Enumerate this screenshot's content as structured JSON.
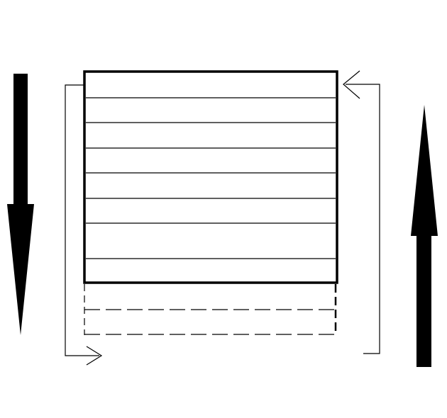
{
  "diagram": {
    "solid_row_count": 8,
    "dashed_row_count": 2,
    "arrows": [
      {
        "name": "down-arrow-icon",
        "direction": "down"
      },
      {
        "name": "up-arrow-icon",
        "direction": "up"
      }
    ],
    "colors": {
      "stroke": "#000000",
      "background": "#ffffff"
    }
  }
}
